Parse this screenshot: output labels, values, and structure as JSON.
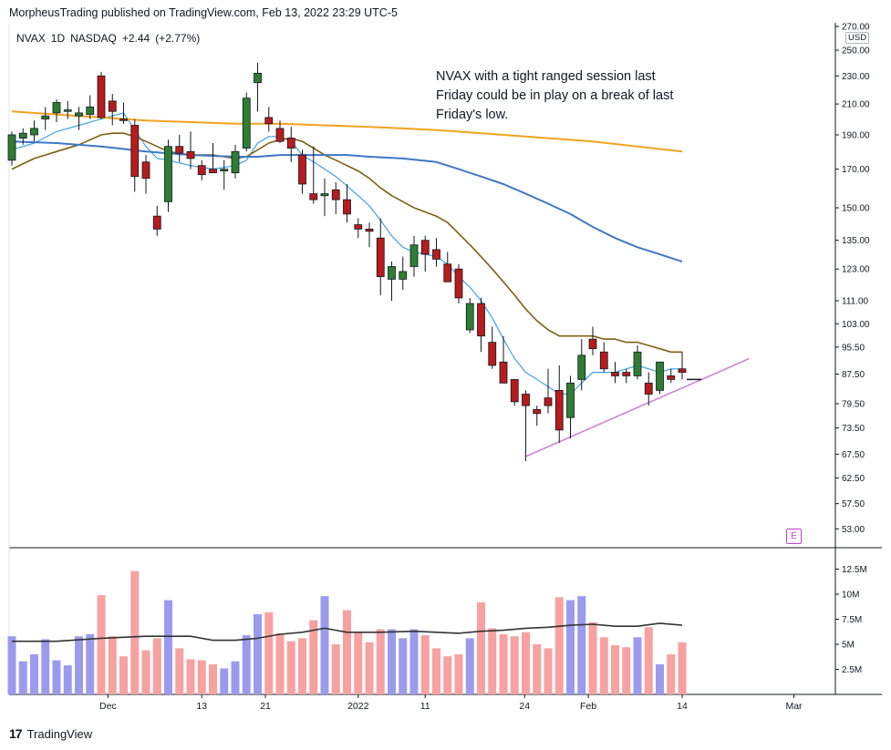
{
  "header": {
    "publisher_line": "MorpheusTrading published on TradingView.com, Feb 13, 2022 23:29 UTC-5"
  },
  "symbol": {
    "name": "NVAX",
    "interval": "1D",
    "exchange": "NASDAQ",
    "change": "+2.44",
    "change_pct": "(+2.77%)"
  },
  "annotation": "NVAX with a tight ranged session last Friday could be in play on a break of last Friday's low.",
  "currency": "USD",
  "earnings_marker": "E",
  "footer": {
    "logo_mark": "17",
    "logo_text": "TradingView"
  },
  "colors": {
    "up": "#2e7d32",
    "down": "#b71c1c",
    "vol_up": "#9b9bee",
    "vol_down": "#f7a1a1",
    "ma_fast": "#3fa3e0",
    "ma_mid": "#7f5f12",
    "ma_slow": "#3d78c6",
    "ma_long": "#f4a21f",
    "trendline": "#d183d6",
    "vol_ma": "#333333"
  },
  "chart_data": {
    "type": "candlestick",
    "price_scale": "log",
    "y_ticks": [
      "270.00",
      "250.00",
      "230.00",
      "210.00",
      "190.00",
      "170.00",
      "150.00",
      "135.00",
      "123.00",
      "111.00",
      "103.00",
      "95.50",
      "87.50",
      "79.50",
      "73.50",
      "67.50",
      "62.50",
      "57.50",
      "53.00"
    ],
    "volume_ticks": [
      "12.5M",
      "10M",
      "7.5M",
      "5M",
      "2.5M"
    ],
    "x_labels": [
      {
        "label": "Dec",
        "bar": 8.6
      },
      {
        "label": "13",
        "bar": 17
      },
      {
        "label": "21",
        "bar": 22.7
      },
      {
        "label": "2022",
        "bar": 31
      },
      {
        "label": "11",
        "bar": 37
      },
      {
        "label": "24",
        "bar": 45.9
      },
      {
        "label": "Feb",
        "bar": 51.6
      },
      {
        "label": "14",
        "bar": 60
      },
      {
        "label": "Mar",
        "bar": 70
      }
    ],
    "candles": [
      [
        175,
        192,
        172,
        190,
        5.8
      ],
      [
        188,
        194,
        184,
        191,
        3.3
      ],
      [
        190,
        199,
        186,
        194,
        4.0
      ],
      [
        200,
        208,
        193,
        202,
        5.5
      ],
      [
        204,
        213,
        198,
        211,
        3.4
      ],
      [
        205,
        212,
        200,
        206,
        2.9
      ],
      [
        202,
        208,
        193,
        204,
        5.8
      ],
      [
        203,
        216,
        200,
        208,
        6.0
      ],
      [
        230,
        233,
        200,
        201,
        9.9
      ],
      [
        212,
        217,
        196,
        205,
        5.8
      ],
      [
        200,
        211,
        197,
        199,
        3.8
      ],
      [
        196,
        200,
        158,
        166,
        12.3
      ],
      [
        174,
        178,
        157,
        165,
        4.4
      ],
      [
        146,
        151,
        137,
        140,
        5.6
      ],
      [
        153,
        187,
        148,
        183,
        9.4
      ],
      [
        183,
        190,
        174,
        179,
        4.6
      ],
      [
        180,
        192,
        170,
        176,
        3.5
      ],
      [
        172,
        175,
        164,
        167,
        3.4
      ],
      [
        170,
        185,
        168,
        168,
        3.0
      ],
      [
        169,
        175,
        159,
        170,
        2.6
      ],
      [
        168,
        184,
        165,
        180,
        3.3
      ],
      [
        182,
        218,
        180,
        214,
        5.9
      ],
      [
        225,
        240,
        205,
        232,
        8.0
      ],
      [
        201,
        208,
        192,
        197,
        8.2
      ],
      [
        194,
        199,
        185,
        186,
        6.1
      ],
      [
        188,
        195,
        174,
        182,
        5.3
      ],
      [
        178,
        181,
        157,
        162,
        5.6
      ],
      [
        157,
        183,
        152,
        154,
        7.4
      ],
      [
        156,
        165,
        146,
        157,
        9.8
      ],
      [
        159,
        163,
        147,
        154,
        5.0
      ],
      [
        154,
        162,
        143,
        147,
        8.4
      ],
      [
        142,
        145,
        136,
        140,
        6.2
      ],
      [
        140,
        143,
        132,
        139,
        5.2
      ],
      [
        136,
        145,
        113,
        120,
        6.5
      ],
      [
        119,
        126,
        111,
        124,
        6.5
      ],
      [
        119,
        128,
        115,
        122,
        5.6
      ],
      [
        124,
        137,
        120,
        133,
        6.5
      ],
      [
        135,
        137,
        122,
        129,
        5.9
      ],
      [
        131,
        136,
        124,
        127,
        4.6
      ],
      [
        125,
        130,
        118,
        118,
        3.8
      ],
      [
        123,
        125,
        110,
        112,
        4.0
      ],
      [
        101,
        112,
        100,
        110,
        5.6
      ],
      [
        110,
        112,
        94,
        99,
        9.2
      ],
      [
        97,
        102,
        89,
        90,
        6.6
      ],
      [
        91,
        99,
        85,
        85,
        6.0
      ],
      [
        86,
        86,
        79,
        80,
        5.8
      ],
      [
        82,
        83,
        66,
        79,
        6.2
      ],
      [
        78,
        79,
        74,
        77,
        5.0
      ],
      [
        81,
        89,
        77,
        79,
        4.6
      ],
      [
        83,
        90,
        70,
        73,
        9.7
      ],
      [
        76,
        87,
        71,
        85,
        9.4
      ],
      [
        86,
        98,
        83,
        93,
        9.8
      ],
      [
        98,
        102,
        93,
        95,
        7.2
      ],
      [
        94,
        97,
        88,
        89,
        5.7
      ],
      [
        88,
        91,
        85,
        87,
        4.9
      ],
      [
        88,
        89,
        85,
        87,
        4.7
      ],
      [
        87,
        96,
        86,
        94,
        5.7
      ],
      [
        85,
        88,
        79,
        82,
        6.7
      ],
      [
        83,
        91,
        82,
        91,
        3.0
      ],
      [
        87,
        89,
        85,
        86,
        4.0
      ],
      [
        89,
        94,
        86,
        88,
        5.2
      ]
    ],
    "lines": [
      {
        "name": "ma_fast",
        "points": [
          [
            0,
            181
          ],
          [
            2,
            185
          ],
          [
            4,
            192
          ],
          [
            6,
            196
          ],
          [
            8,
            200
          ],
          [
            9,
            202
          ],
          [
            10,
            204
          ],
          [
            11,
            193
          ],
          [
            12,
            183
          ],
          [
            13,
            176
          ],
          [
            14,
            175
          ],
          [
            16,
            172
          ],
          [
            18,
            170
          ],
          [
            20,
            172
          ],
          [
            21,
            175
          ],
          [
            22,
            185
          ],
          [
            23,
            189
          ],
          [
            24,
            189
          ],
          [
            25,
            186
          ],
          [
            26,
            178
          ],
          [
            27,
            174
          ],
          [
            28,
            170
          ],
          [
            29,
            166
          ],
          [
            30,
            161
          ],
          [
            31,
            156
          ],
          [
            32,
            151
          ],
          [
            33,
            144
          ],
          [
            34,
            137
          ],
          [
            35,
            132
          ],
          [
            36,
            130
          ],
          [
            37,
            129
          ],
          [
            38,
            128
          ],
          [
            39,
            125
          ],
          [
            40,
            120
          ],
          [
            41,
            116
          ],
          [
            42,
            111
          ],
          [
            43,
            105
          ],
          [
            44,
            98
          ],
          [
            45,
            92
          ],
          [
            46,
            88
          ],
          [
            47,
            86
          ],
          [
            48,
            84
          ],
          [
            49,
            82
          ],
          [
            50,
            82
          ],
          [
            51,
            85
          ],
          [
            52,
            88
          ],
          [
            53,
            88
          ],
          [
            54,
            88
          ],
          [
            55,
            89
          ],
          [
            56,
            90
          ],
          [
            57,
            89
          ],
          [
            58,
            88
          ],
          [
            59,
            89
          ],
          [
            60,
            89
          ]
        ]
      },
      {
        "name": "ma_mid",
        "points": [
          [
            0,
            170
          ],
          [
            2,
            176
          ],
          [
            4,
            180
          ],
          [
            6,
            184
          ],
          [
            8,
            190
          ],
          [
            9,
            191
          ],
          [
            10,
            191
          ],
          [
            11,
            189
          ],
          [
            12,
            186
          ],
          [
            13,
            183
          ],
          [
            14,
            180
          ],
          [
            16,
            178
          ],
          [
            18,
            178
          ],
          [
            20,
            176
          ],
          [
            21,
            177
          ],
          [
            22,
            181
          ],
          [
            23,
            185
          ],
          [
            24,
            187
          ],
          [
            25,
            188
          ],
          [
            26,
            186
          ],
          [
            27,
            182
          ],
          [
            28,
            178
          ],
          [
            29,
            175
          ],
          [
            30,
            172
          ],
          [
            31,
            169
          ],
          [
            32,
            165
          ],
          [
            33,
            160
          ],
          [
            34,
            156
          ],
          [
            35,
            153
          ],
          [
            36,
            150
          ],
          [
            37,
            148
          ],
          [
            38,
            146
          ],
          [
            39,
            143
          ],
          [
            40,
            138
          ],
          [
            41,
            133
          ],
          [
            42,
            128
          ],
          [
            43,
            123
          ],
          [
            44,
            118
          ],
          [
            45,
            113
          ],
          [
            46,
            108
          ],
          [
            47,
            104
          ],
          [
            48,
            101
          ],
          [
            49,
            99
          ],
          [
            50,
            99
          ],
          [
            51,
            99
          ],
          [
            52,
            99
          ],
          [
            53,
            98
          ],
          [
            54,
            98
          ],
          [
            55,
            97
          ],
          [
            56,
            97
          ],
          [
            57,
            96
          ],
          [
            58,
            95
          ],
          [
            59,
            94
          ],
          [
            60,
            94
          ]
        ]
      },
      {
        "name": "ma_slow",
        "points": [
          [
            0,
            186
          ],
          [
            4,
            185
          ],
          [
            8,
            183
          ],
          [
            12,
            180
          ],
          [
            16,
            178
          ],
          [
            20,
            177
          ],
          [
            22,
            177
          ],
          [
            24,
            178
          ],
          [
            28,
            178
          ],
          [
            30,
            178
          ],
          [
            32,
            177
          ],
          [
            35,
            176
          ],
          [
            38,
            174
          ],
          [
            40,
            170
          ],
          [
            42,
            166
          ],
          [
            44,
            162
          ],
          [
            46,
            157
          ],
          [
            48,
            152
          ],
          [
            50,
            147
          ],
          [
            52,
            141
          ],
          [
            54,
            136
          ],
          [
            56,
            132
          ],
          [
            58,
            129
          ],
          [
            60,
            126
          ]
        ]
      },
      {
        "name": "ma_long",
        "points": [
          [
            0,
            205
          ],
          [
            4,
            203
          ],
          [
            8,
            201
          ],
          [
            12,
            199
          ],
          [
            16,
            198
          ],
          [
            20,
            197
          ],
          [
            24,
            197
          ],
          [
            28,
            196
          ],
          [
            32,
            195
          ],
          [
            35,
            194
          ],
          [
            38,
            193
          ],
          [
            40,
            192
          ],
          [
            44,
            190
          ],
          [
            48,
            188
          ],
          [
            52,
            186
          ],
          [
            56,
            183
          ],
          [
            60,
            180
          ]
        ]
      },
      {
        "name": "trendline",
        "points": [
          [
            46,
            67
          ],
          [
            66,
            92
          ]
        ]
      },
      {
        "name": "vol_ma",
        "points": [
          [
            0,
            5.3
          ],
          [
            4,
            5.3
          ],
          [
            8,
            5.6
          ],
          [
            12,
            5.8
          ],
          [
            16,
            5.8
          ],
          [
            18,
            5.4
          ],
          [
            20,
            5.4
          ],
          [
            22,
            5.6
          ],
          [
            24,
            6.0
          ],
          [
            26,
            6.2
          ],
          [
            28,
            6.6
          ],
          [
            30,
            6.2
          ],
          [
            33,
            6.2
          ],
          [
            36,
            6.3
          ],
          [
            38,
            6.2
          ],
          [
            40,
            6.1
          ],
          [
            42,
            6.3
          ],
          [
            44,
            6.4
          ],
          [
            46,
            6.6
          ],
          [
            48,
            6.7
          ],
          [
            50,
            6.9
          ],
          [
            52,
            7.0
          ],
          [
            54,
            6.8
          ],
          [
            56,
            6.8
          ],
          [
            58,
            7.1
          ],
          [
            60,
            6.9
          ]
        ]
      }
    ]
  }
}
